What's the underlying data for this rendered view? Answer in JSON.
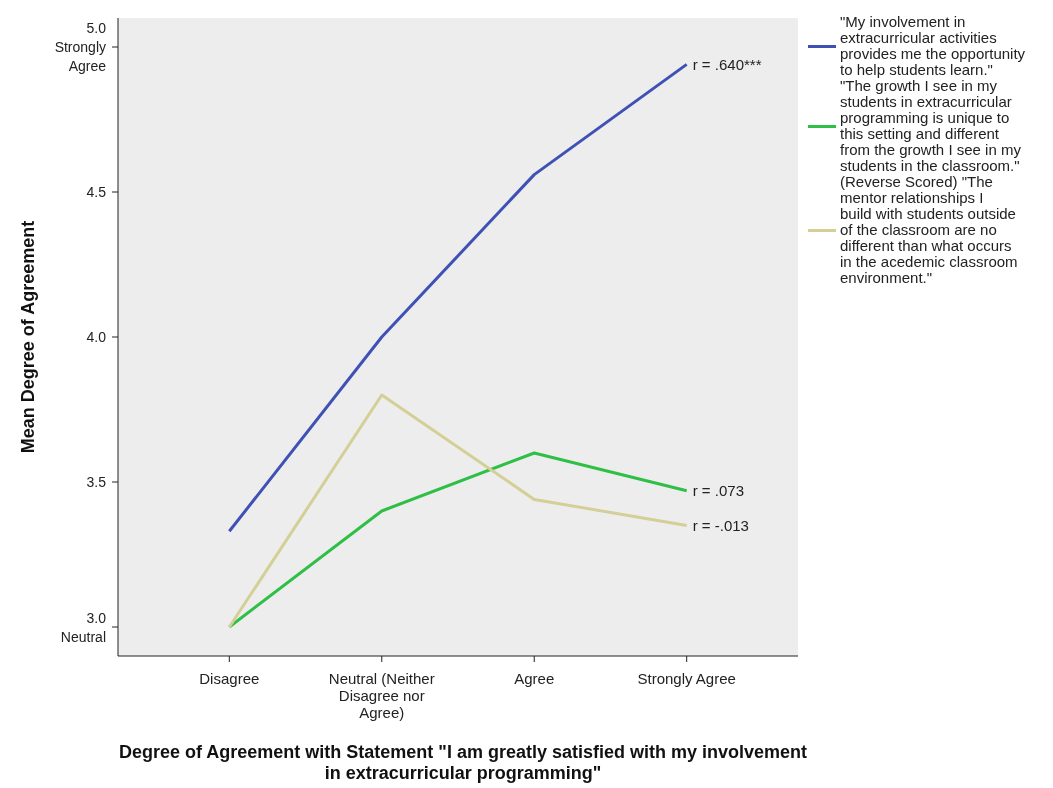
{
  "chart_data": {
    "type": "line",
    "xlabel": "Degree of Agreement with Statement \"I am greatly satisfied with my involvement in extracurricular programming\"",
    "ylabel": "Mean Degree of Agreement",
    "categories": [
      "Disagree",
      "Neutral (Neither Disagree nor Agree)",
      "Agree",
      "Strongly Agree"
    ],
    "series": [
      {
        "name": "\"My involvement in extracurricular activities provides me the opportunity to help students learn.\"",
        "color": "#3f51b5",
        "values": [
          3.33,
          4.0,
          4.56,
          4.94
        ]
      },
      {
        "name": "\"The growth I see in my students in extracurricular programming is unique to this setting and different from the growth I see in my students in the classroom.\"",
        "color": "#2fbf47",
        "values": [
          3.0,
          3.4,
          3.6,
          3.47
        ]
      },
      {
        "name": "(Reverse Scored) \"The mentor relationships I build with students outside of the classroom are no different than what occurs in the acedemic classroom environment.\"",
        "color": "#d4cf96",
        "values": [
          3.0,
          3.8,
          3.44,
          3.35
        ]
      }
    ],
    "ylim": [
      2.9,
      5.1
    ],
    "yticks": [
      {
        "value": 3,
        "label": "3.0 Neutral"
      },
      {
        "value": 3.5,
        "label": "3.5"
      },
      {
        "value": 4,
        "label": "4.0"
      },
      {
        "value": 4.5,
        "label": "4.5"
      },
      {
        "value": 5,
        "label": "5.0 Strongly Agree"
      }
    ],
    "annotations": [
      {
        "text": "r = .640***",
        "x": "Strongly Agree",
        "y": 4.94
      },
      {
        "text": "r = .073",
        "x": "Strongly Agree",
        "y": 3.47
      },
      {
        "text": "r = -.013",
        "x": "Strongly Agree",
        "y": 3.35
      }
    ],
    "grid": false,
    "legend": "right",
    "marker": "none",
    "line_style": "solid"
  }
}
